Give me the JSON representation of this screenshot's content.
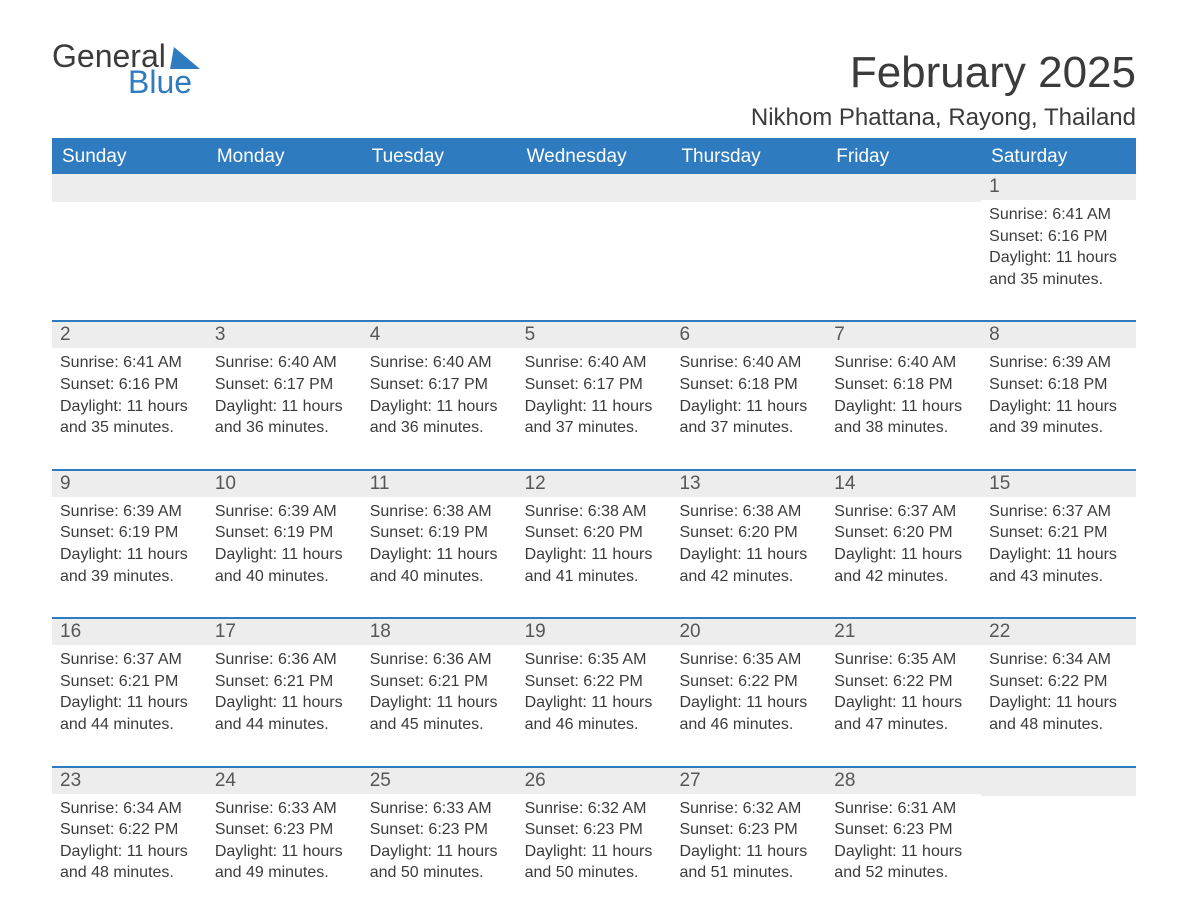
{
  "logo": {
    "line1": "General",
    "line2": "Blue"
  },
  "title": "February 2025",
  "location": "Nikhom Phattana, Rayong, Thailand",
  "colors": {
    "accent": "#2f7bbf",
    "header_bg": "#2f7bbf",
    "header_text": "#ffffff",
    "daynum_bg": "#ededed",
    "daynum_text": "#575757",
    "body_text": "#3b3b3b",
    "page_bg": "#ffffff"
  },
  "weekdays": [
    "Sunday",
    "Monday",
    "Tuesday",
    "Wednesday",
    "Thursday",
    "Friday",
    "Saturday"
  ],
  "weeks": [
    [
      null,
      null,
      null,
      null,
      null,
      null,
      {
        "n": "1",
        "sunrise": "6:41 AM",
        "sunset": "6:16 PM",
        "daylight": "11 hours and 35 minutes."
      }
    ],
    [
      {
        "n": "2",
        "sunrise": "6:41 AM",
        "sunset": "6:16 PM",
        "daylight": "11 hours and 35 minutes."
      },
      {
        "n": "3",
        "sunrise": "6:40 AM",
        "sunset": "6:17 PM",
        "daylight": "11 hours and 36 minutes."
      },
      {
        "n": "4",
        "sunrise": "6:40 AM",
        "sunset": "6:17 PM",
        "daylight": "11 hours and 36 minutes."
      },
      {
        "n": "5",
        "sunrise": "6:40 AM",
        "sunset": "6:17 PM",
        "daylight": "11 hours and 37 minutes."
      },
      {
        "n": "6",
        "sunrise": "6:40 AM",
        "sunset": "6:18 PM",
        "daylight": "11 hours and 37 minutes."
      },
      {
        "n": "7",
        "sunrise": "6:40 AM",
        "sunset": "6:18 PM",
        "daylight": "11 hours and 38 minutes."
      },
      {
        "n": "8",
        "sunrise": "6:39 AM",
        "sunset": "6:18 PM",
        "daylight": "11 hours and 39 minutes."
      }
    ],
    [
      {
        "n": "9",
        "sunrise": "6:39 AM",
        "sunset": "6:19 PM",
        "daylight": "11 hours and 39 minutes."
      },
      {
        "n": "10",
        "sunrise": "6:39 AM",
        "sunset": "6:19 PM",
        "daylight": "11 hours and 40 minutes."
      },
      {
        "n": "11",
        "sunrise": "6:38 AM",
        "sunset": "6:19 PM",
        "daylight": "11 hours and 40 minutes."
      },
      {
        "n": "12",
        "sunrise": "6:38 AM",
        "sunset": "6:20 PM",
        "daylight": "11 hours and 41 minutes."
      },
      {
        "n": "13",
        "sunrise": "6:38 AM",
        "sunset": "6:20 PM",
        "daylight": "11 hours and 42 minutes."
      },
      {
        "n": "14",
        "sunrise": "6:37 AM",
        "sunset": "6:20 PM",
        "daylight": "11 hours and 42 minutes."
      },
      {
        "n": "15",
        "sunrise": "6:37 AM",
        "sunset": "6:21 PM",
        "daylight": "11 hours and 43 minutes."
      }
    ],
    [
      {
        "n": "16",
        "sunrise": "6:37 AM",
        "sunset": "6:21 PM",
        "daylight": "11 hours and 44 minutes."
      },
      {
        "n": "17",
        "sunrise": "6:36 AM",
        "sunset": "6:21 PM",
        "daylight": "11 hours and 44 minutes."
      },
      {
        "n": "18",
        "sunrise": "6:36 AM",
        "sunset": "6:21 PM",
        "daylight": "11 hours and 45 minutes."
      },
      {
        "n": "19",
        "sunrise": "6:35 AM",
        "sunset": "6:22 PM",
        "daylight": "11 hours and 46 minutes."
      },
      {
        "n": "20",
        "sunrise": "6:35 AM",
        "sunset": "6:22 PM",
        "daylight": "11 hours and 46 minutes."
      },
      {
        "n": "21",
        "sunrise": "6:35 AM",
        "sunset": "6:22 PM",
        "daylight": "11 hours and 47 minutes."
      },
      {
        "n": "22",
        "sunrise": "6:34 AM",
        "sunset": "6:22 PM",
        "daylight": "11 hours and 48 minutes."
      }
    ],
    [
      {
        "n": "23",
        "sunrise": "6:34 AM",
        "sunset": "6:22 PM",
        "daylight": "11 hours and 48 minutes."
      },
      {
        "n": "24",
        "sunrise": "6:33 AM",
        "sunset": "6:23 PM",
        "daylight": "11 hours and 49 minutes."
      },
      {
        "n": "25",
        "sunrise": "6:33 AM",
        "sunset": "6:23 PM",
        "daylight": "11 hours and 50 minutes."
      },
      {
        "n": "26",
        "sunrise": "6:32 AM",
        "sunset": "6:23 PM",
        "daylight": "11 hours and 50 minutes."
      },
      {
        "n": "27",
        "sunrise": "6:32 AM",
        "sunset": "6:23 PM",
        "daylight": "11 hours and 51 minutes."
      },
      {
        "n": "28",
        "sunrise": "6:31 AM",
        "sunset": "6:23 PM",
        "daylight": "11 hours and 52 minutes."
      },
      null
    ]
  ],
  "labels": {
    "sunrise": "Sunrise: ",
    "sunset": "Sunset: ",
    "daylight": "Daylight: "
  }
}
